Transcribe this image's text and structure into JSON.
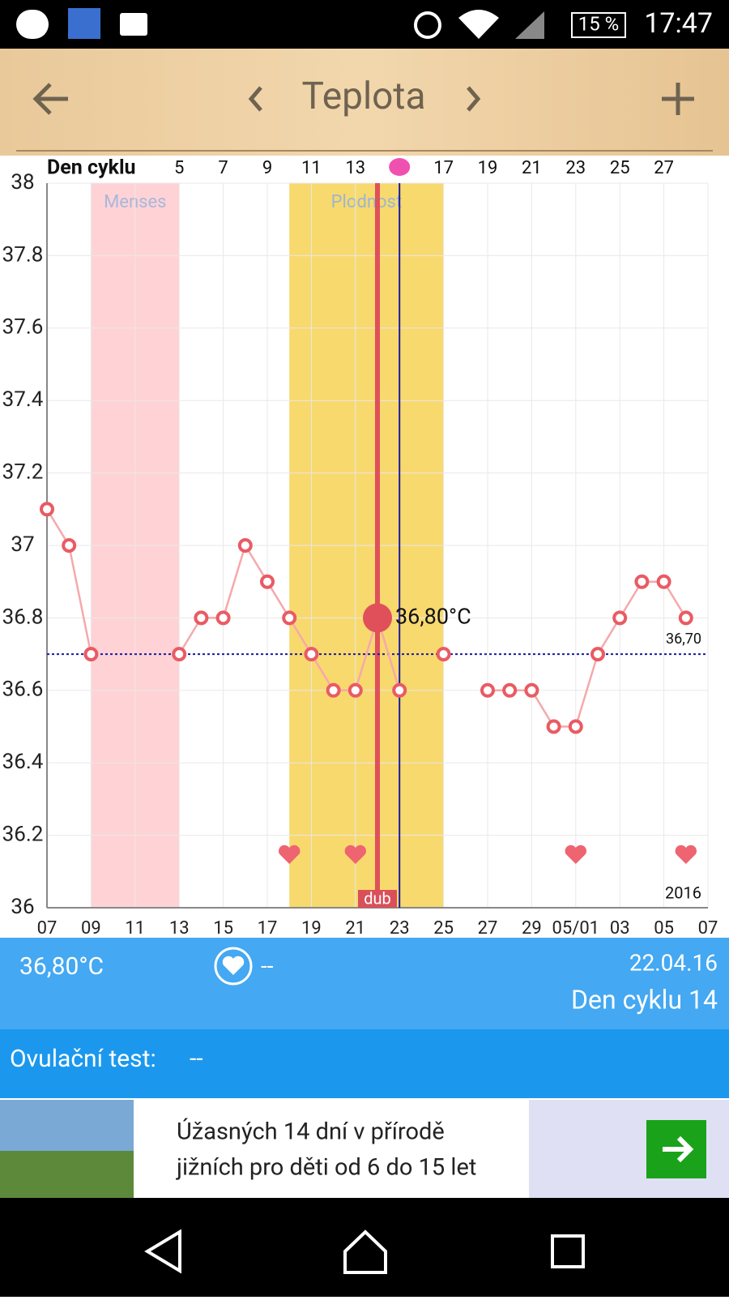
{
  "status_bar": {
    "battery": "15 %",
    "time": "17:47"
  },
  "toolbar": {
    "title": "Teplota"
  },
  "chart_data": {
    "type": "line",
    "x2_label": "Den cyklu",
    "categories": [
      "07",
      null,
      "09",
      null,
      "11",
      null,
      "13",
      null,
      "15",
      null,
      "17",
      null,
      "19",
      null,
      "21",
      null,
      "23",
      null,
      "25",
      null,
      "27",
      null,
      "29",
      null,
      "05/01",
      null,
      "03",
      null,
      "05",
      null,
      "07"
    ],
    "x2_categories": [
      null,
      null,
      null,
      null,
      null,
      null,
      "5",
      null,
      "7",
      null,
      "9",
      null,
      "11",
      null,
      "13",
      null,
      null,
      null,
      "17",
      null,
      "19",
      null,
      "21",
      null,
      "23",
      null,
      "25",
      null,
      "27",
      null,
      null
    ],
    "series": [
      {
        "color": "#e95b63",
        "values": [
          37.1,
          37.0,
          36.7,
          null,
          null,
          null,
          36.7,
          36.8,
          36.8,
          37.0,
          36.9,
          36.8,
          36.7,
          36.6,
          36.6,
          36.8,
          36.6,
          null,
          36.7,
          null,
          36.6,
          36.6,
          36.6,
          36.5,
          36.5,
          36.7,
          36.8,
          36.9,
          36.9,
          36.8,
          null
        ]
      }
    ],
    "ylim": [
      36,
      38
    ],
    "yticks": [
      36,
      36.2,
      36.4,
      36.6,
      36.8,
      37,
      37.2,
      37.4,
      37.6,
      37.8,
      38
    ],
    "grid": true,
    "bands": [
      "Menses",
      "Plodnost"
    ],
    "reference": {
      "value": 36.7,
      "label": "36,70"
    },
    "selected": {
      "value": 36.8,
      "label": "36,80°C",
      "marker": "dub"
    },
    "year": "2016"
  },
  "info_panel": {
    "temperature": "36,80°C",
    "intercourse": "--",
    "date": "22.04.16",
    "cycle_day": "Den cyklu 14"
  },
  "ovulation": {
    "label": "Ovulační test:",
    "value": "--"
  },
  "ad": {
    "line1": "Úžasných 14 dní v přírodě",
    "line2": "jižních pro děti od 6 do 15 let"
  }
}
